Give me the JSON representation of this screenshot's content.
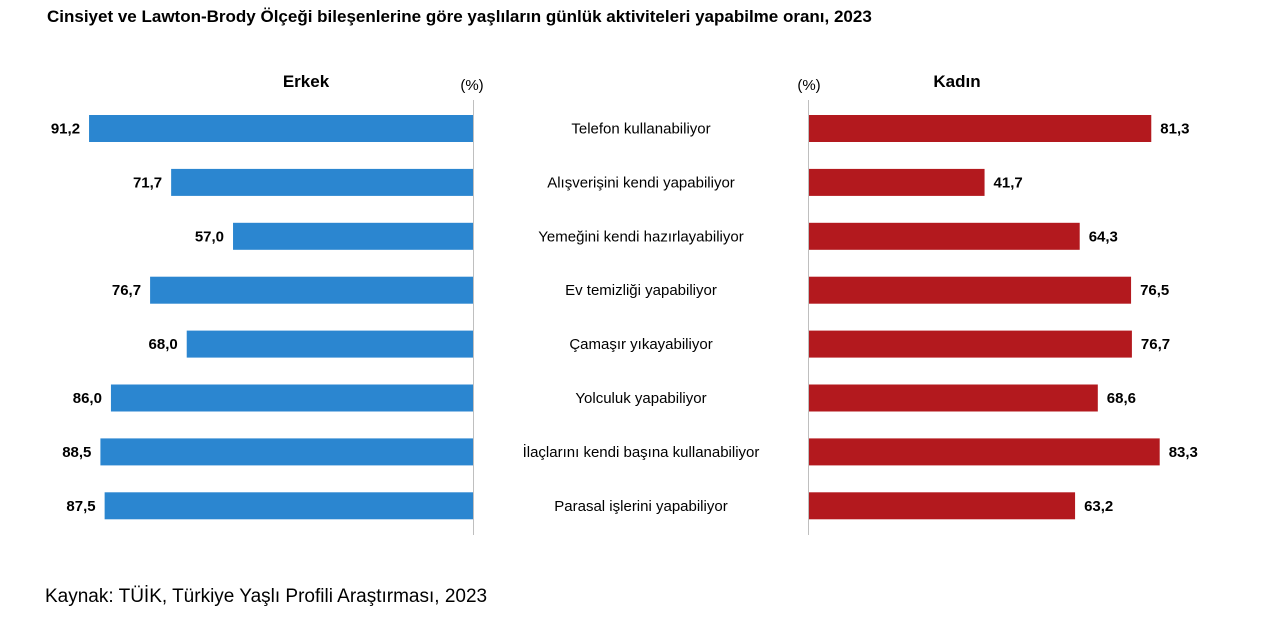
{
  "title": "Cinsiyet ve Lawton-Brody Ölçeği bileşenlerine göre yaşlıların günlük aktiviteleri yapabilme oranı, 2023",
  "source": "Kaynak: TÜİK, Türkiye Yaşlı Profili Araştırması, 2023",
  "colors": {
    "male": "#2B86D0",
    "female": "#B3191E",
    "axis": "#BFBFBF"
  },
  "chart_data": {
    "type": "bar",
    "orientation": "horizontal",
    "layout": "back-to-back",
    "unit_label": "(%)",
    "categories": [
      "Telefon kullanabiliyor",
      "Alışverişini kendi yapabiliyor",
      "Yemeğini kendi hazırlayabiliyor",
      "Ev temizliği yapabiliyor",
      "Çamaşır yıkayabiliyor",
      "Yolculuk yapabiliyor",
      "İlaçlarını kendi başına kullanabiliyor",
      "Parasal işlerini yapabiliyor"
    ],
    "series": [
      {
        "name": "Erkek",
        "values": [
          91.2,
          71.7,
          57.0,
          76.7,
          68.0,
          86.0,
          88.5,
          87.5
        ],
        "value_labels": [
          "91,2",
          "71,7",
          "57,0",
          "76,7",
          "68,0",
          "86,0",
          "88,5",
          "87,5"
        ]
      },
      {
        "name": "Kadın",
        "values": [
          81.3,
          41.7,
          64.3,
          76.5,
          76.7,
          68.6,
          83.3,
          63.2
        ],
        "value_labels": [
          "81,3",
          "41,7",
          "64,3",
          "76,5",
          "76,7",
          "68,6",
          "83,3",
          "63,2"
        ]
      }
    ],
    "xlim": [
      0,
      100
    ],
    "grid": false,
    "legend": "none"
  }
}
